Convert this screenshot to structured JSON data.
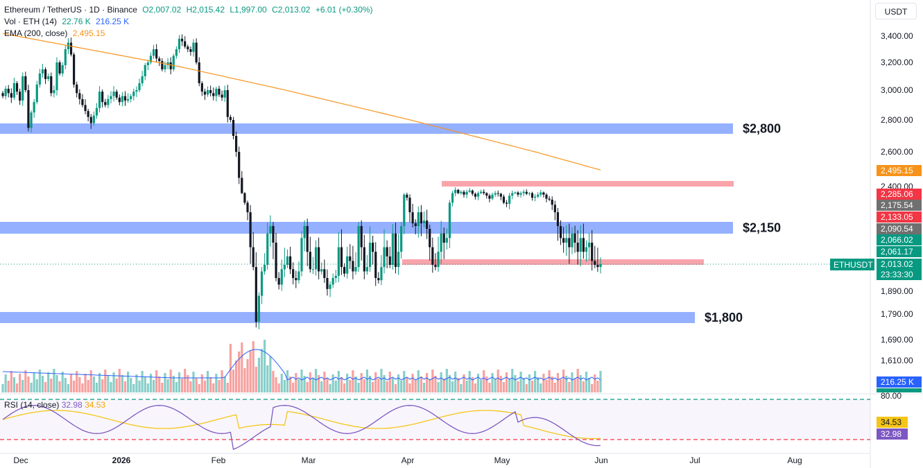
{
  "legend": {
    "symbol_line": "Ethereum / TetherUS · 1D · Binance",
    "open": "O2,007.02",
    "high": "H2,015.42",
    "low": "L1,997.00",
    "close": "C2,013.02",
    "change": "+6.01 (+0.30%)",
    "vol_label": "Vol · ETH (14)",
    "vol_value": "22.76 K",
    "vol_ma_value": "216.25 K",
    "ema_label": "EMA (200, close)",
    "ema_value": "2,495.15"
  },
  "currency": "USDT",
  "price_axis": {
    "ticks": [
      "3,400.00",
      "3,200.00",
      "3,000.00",
      "2,800.00",
      "2,600.00",
      "2,400.00",
      "1,890.00",
      "1,790.00",
      "1,690.00",
      "1,610.00"
    ],
    "tick_prices": [
      3400,
      3200,
      3000,
      2800,
      2600,
      2400,
      1890,
      1790,
      1690,
      1610
    ],
    "vol_scale_label": "80.00",
    "tags": [
      {
        "text": "2,495.15",
        "color": "#f7931a",
        "price": 2495.15
      },
      {
        "text": "2,285.06",
        "color": "#f23645",
        "price": 2285.06
      },
      {
        "text": "2,175.54",
        "color": "#707070",
        "price": 2175.54
      },
      {
        "text": "2,133.05",
        "color": "#f23645",
        "price": 2133.05
      },
      {
        "text": "2,090.54",
        "color": "#707070",
        "price": 2090.54
      },
      {
        "text": "2,066.02",
        "color": "#089981",
        "price": 2066.02
      },
      {
        "text": "2,061.17",
        "color": "#089981",
        "price": 2061.17
      },
      {
        "text": "2,013.02",
        "color": "#089981",
        "price": 2013.02
      }
    ],
    "countdown": "23:33:30",
    "symbol_tag": "ETHUSDT",
    "vol_tag": "216.25 K",
    "vol_tag2": "22.76 K",
    "rsi_tag_ma": "34.53",
    "rsi_tag_rsi": "32.98"
  },
  "levels": [
    {
      "label": "$2,800",
      "price": 2770,
      "color": "#2962ff"
    },
    {
      "label": "$2,150",
      "price": 2100,
      "color": "#2962ff"
    },
    {
      "label": "$1,800",
      "price": 1790,
      "color": "#2962ff"
    }
  ],
  "resistance_zones": [
    {
      "price": 2420,
      "color": "#f23645"
    },
    {
      "price": 2013,
      "color": "#f23645"
    }
  ],
  "rsi": {
    "label": "RSI (14, close)",
    "rsi_value": "32.98",
    "ma_value": "34.53",
    "rsi_color": "#7e57c2",
    "ma_color": "#f5c518",
    "upper": 70,
    "lower": 30
  },
  "time_axis": {
    "labels": [
      "Dec",
      "2026",
      "Feb",
      "Mar",
      "Apr",
      "May",
      "Jun",
      "Jul",
      "Aug"
    ]
  },
  "colors": {
    "up": "#089981",
    "down": "#131722",
    "ema": "#f7931a",
    "vol_ma": "#2962ff"
  },
  "chart_data": {
    "type": "candlestick",
    "title": "Ethereum / TetherUS · 1D · Binance",
    "series_close": [
      2960,
      3010,
      2980,
      2950,
      3050,
      2990,
      2930,
      3100,
      3000,
      2750,
      2850,
      2920,
      3040,
      3120,
      3150,
      3080,
      3100,
      2980,
      3000,
      3200,
      3120,
      3180,
      3300,
      3350,
      3260,
      3040,
      2980,
      2940,
      2900,
      2860,
      2820,
      2780,
      2830,
      2880,
      2990,
      2920,
      2900,
      2940,
      2960,
      2990,
      2950,
      2920,
      2960,
      2930,
      2940,
      2960,
      2990,
      3000,
      3050,
      3100,
      3180,
      3200,
      3250,
      3300,
      3230,
      3210,
      3150,
      3180,
      3200,
      3150,
      3250,
      3300,
      3380,
      3360,
      3320,
      3300,
      3280,
      3350,
      3200,
      3050,
      2990,
      2970,
      3000,
      2980,
      2960,
      3010,
      2970,
      2950,
      3000,
      2820,
      2800,
      2700,
      2600,
      2450,
      2300,
      2200,
      2150,
      2050,
      2000,
      1760,
      1870,
      1980,
      2010,
      2080,
      2100,
      2060,
      1950,
      1920,
      1990,
      2010,
      2030,
      1990,
      1950,
      1940,
      1980,
      2070,
      2100,
      2040,
      1990,
      1990,
      2050,
      1980,
      1990,
      1950,
      1900,
      1920,
      1950,
      1960,
      2050,
      2000,
      1970,
      2030,
      2020,
      1980,
      2000,
      2100,
      2050,
      1980,
      2000,
      2060,
      2040,
      1950,
      1940,
      2000,
      2050,
      2030,
      2010,
      2080,
      2000,
      2040,
      2100,
      2280,
      2250,
      2150,
      2110,
      2100,
      2150,
      2110,
      2120,
      2090,
      2050,
      2010,
      2000,
      2040,
      2080,
      2060,
      2070,
      2200,
      2300,
      2350,
      2300,
      2320,
      2280,
      2320,
      2340,
      2290,
      2260,
      2300,
      2320,
      2300,
      2270,
      2240,
      2280,
      2300,
      2290,
      2260,
      2200,
      2190,
      2270,
      2300,
      2310,
      2280,
      2300,
      2320,
      2290,
      2300,
      2250,
      2260,
      2280,
      2310,
      2280,
      2240,
      2230,
      2180,
      2150,
      2100,
      2070,
      2060,
      2070,
      2050,
      2080,
      2060,
      2040,
      2070,
      2040,
      2050,
      2060,
      2020,
      2010,
      2000,
      2013
    ],
    "ema": {
      "start": 3420,
      "end": 2495.15
    },
    "ylim": [
      1560,
      3480
    ],
    "rsi_last": 32.98,
    "rsi_ma_last": 34.53
  }
}
